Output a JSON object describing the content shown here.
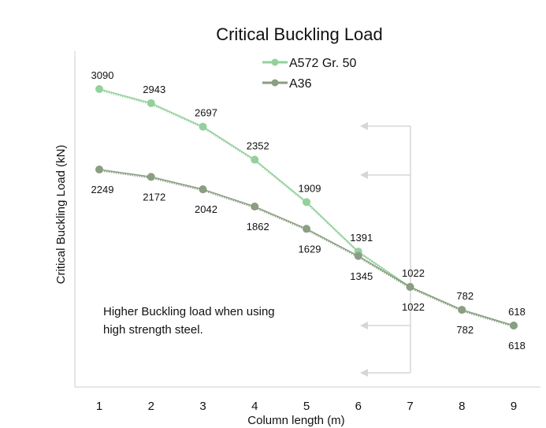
{
  "chart_data": {
    "type": "line",
    "title": "Critical Buckling Load",
    "xlabel": "Column length (m)",
    "ylabel": "Critical Buckling Load (kN)",
    "x": [
      1,
      2,
      3,
      4,
      5,
      6,
      7,
      8,
      9
    ],
    "ylim": [
      0,
      3500
    ],
    "grid": false,
    "legend_placement": "top-center",
    "series": [
      {
        "name": "A572 Gr. 50",
        "color": "#93d19c",
        "values": [
          3090,
          2943,
          2697,
          2352,
          1909,
          1391,
          1022,
          782,
          618
        ]
      },
      {
        "name": "A36",
        "color": "#8a9e82",
        "values": [
          2249,
          2172,
          2042,
          1862,
          1629,
          1345,
          1022,
          782,
          618
        ]
      }
    ],
    "annotation": {
      "line1": "Higher Buckling load when using",
      "line2": "high strength steel."
    },
    "annotation_arrow_color": "#d6d6d6"
  }
}
